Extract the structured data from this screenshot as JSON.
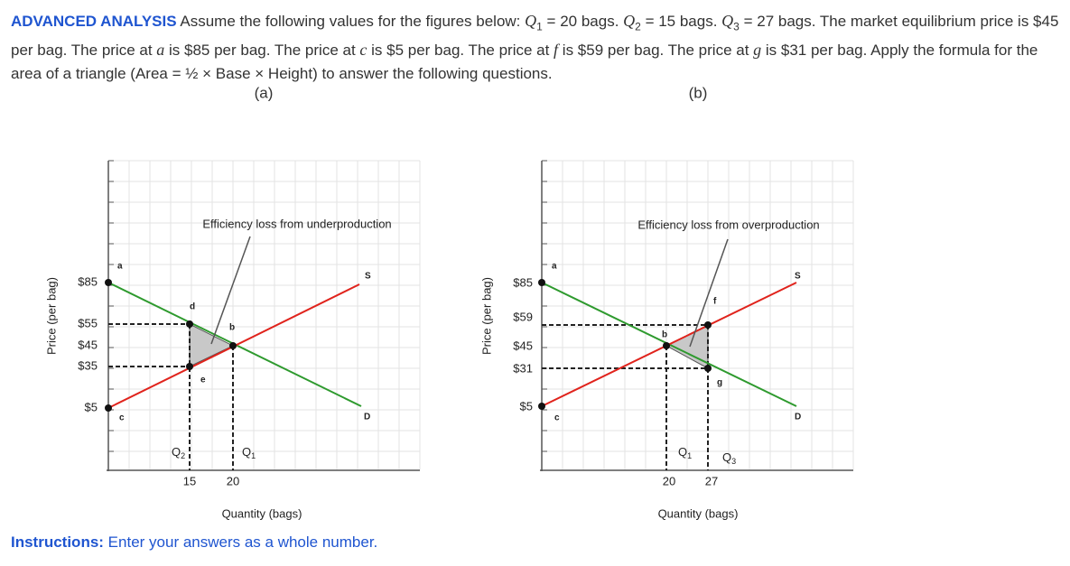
{
  "problem": {
    "label": "ADVANCED ANALYSIS",
    "runs": [
      "Assume the following values for the figures below: ",
      "Q",
      "1",
      " = 20 bags. ",
      "Q",
      "2",
      " = 15 bags. ",
      "Q",
      "3",
      " = 27 bags. The market equilibrium price is $45 per bag. The price at ",
      "a",
      " is $85 per bag. The price at ",
      "c",
      " is $5 per bag. The price at ",
      "f",
      " is $59 per bag. The price at ",
      "g",
      " is $31 per bag. Apply the formula for the area of a triangle (Area = ½ × Base × Height) to answer the following questions."
    ]
  },
  "figures": [
    {
      "caption": "(a)",
      "y_axis_title": "Price (per bag)",
      "x_axis_title": "Quantity (bags)",
      "annotation": "Efficiency loss from underproduction",
      "price_ticks": [
        "$85",
        "$55",
        "$45",
        "$35",
        "$5"
      ],
      "quantity_ticks": [
        "15",
        "20"
      ],
      "points": [
        "a",
        "b",
        "c",
        "d",
        "e"
      ],
      "curves": [
        "S",
        "D"
      ],
      "quantity_labels": [
        {
          "letter": "Q",
          "sub": "2"
        },
        {
          "letter": "Q",
          "sub": "1"
        }
      ]
    },
    {
      "caption": "(b)",
      "y_axis_title": "Price (per bag)",
      "x_axis_title": "Quantity (bags)",
      "annotation": "Efficiency loss from overproduction",
      "price_ticks": [
        "$85",
        "$59",
        "$45",
        "$31",
        "$5"
      ],
      "quantity_ticks": [
        "20",
        "27"
      ],
      "points": [
        "a",
        "b",
        "c",
        "f",
        "g"
      ],
      "curves": [
        "S",
        "D"
      ],
      "quantity_labels": [
        {
          "letter": "Q",
          "sub": "1"
        },
        {
          "letter": "Q",
          "sub": "3"
        }
      ]
    }
  ],
  "instructions": {
    "label": "Instructions:",
    "text": " Enter your answers as a whole number."
  }
}
